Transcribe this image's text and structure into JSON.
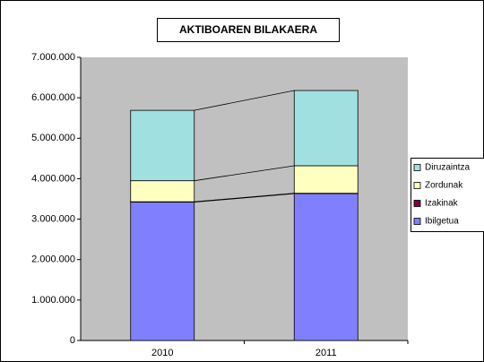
{
  "chart_data": {
    "type": "stacked_bar",
    "title": "AKTIBOAREN BILAKAERA",
    "categories": [
      "2010",
      "2011"
    ],
    "series": [
      {
        "name": "Ibilgetua",
        "color": "#8080ff",
        "values": [
          3420000,
          3630000
        ]
      },
      {
        "name": "Izakinak",
        "color": "#800040",
        "values": [
          10000,
          10000
        ]
      },
      {
        "name": "Zordunak",
        "color": "#ffffc0",
        "values": [
          520000,
          680000
        ]
      },
      {
        "name": "Diruzaintza",
        "color": "#a0e0e0",
        "values": [
          1740000,
          1860000
        ]
      }
    ],
    "ylim": [
      0,
      7000000
    ],
    "yticks": [
      0,
      {
        "value": 1000000,
        "label": "1.000.000"
      },
      {
        "value": 2000000,
        "label": "2.000.000"
      },
      {
        "value": 3000000,
        "label": "3.000.000"
      },
      {
        "value": 4000000,
        "label": "4.000.000"
      },
      {
        "value": 5000000,
        "label": "5.000.000"
      },
      {
        "value": 6000000,
        "label": "6.000.000"
      },
      {
        "value": 7000000,
        "label": "7.000.000"
      }
    ],
    "legend": "right",
    "series_lines": true
  }
}
